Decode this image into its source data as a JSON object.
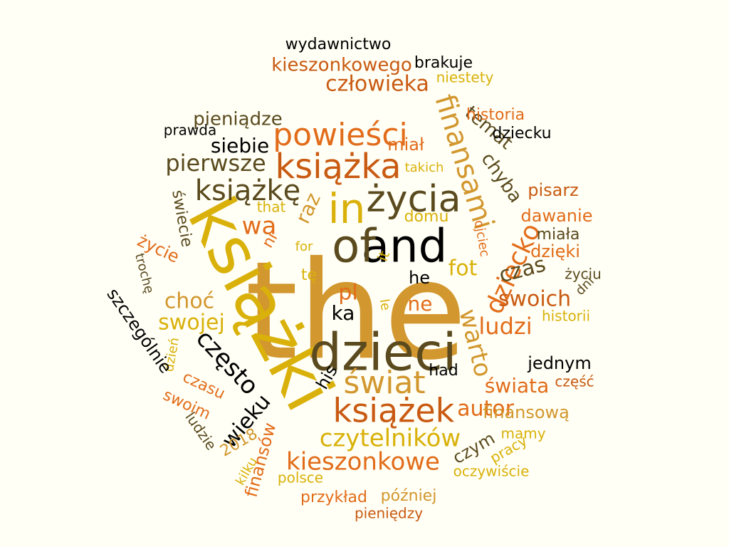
{
  "palette": {
    "background": "#fffff5",
    "gold": "#d9b10a",
    "amber": "#d2972e",
    "orange": "#e26c1a",
    "rust": "#c95a12",
    "olive": "#5a4a1e",
    "black": "#000000"
  },
  "words": [
    {
      "text": "the",
      "color": "#d2972e"
    },
    {
      "text": "książki",
      "color": "#d9b10a"
    },
    {
      "text": "dzieci",
      "color": "#5a4a1e"
    },
    {
      "text": "and",
      "color": "#000000"
    },
    {
      "text": "of",
      "color": "#5a4a1e"
    },
    {
      "text": "in",
      "color": "#d9b10a"
    },
    {
      "text": "życia",
      "color": "#5a4a1e"
    },
    {
      "text": "świat",
      "color": "#d2972e"
    },
    {
      "text": "książka",
      "color": "#c95a12"
    },
    {
      "text": "powieści",
      "color": "#e26c1a"
    },
    {
      "text": "książek",
      "color": "#c95a12"
    },
    {
      "text": "finansami",
      "color": "#d2972e"
    },
    {
      "text": "dziecko",
      "color": "#e26c1a"
    },
    {
      "text": "warto",
      "color": "#d2972e"
    },
    {
      "text": "książkę",
      "color": "#5a4a1e"
    },
    {
      "text": "często",
      "color": "#000000"
    },
    {
      "text": "czytelników",
      "color": "#d9b10a"
    },
    {
      "text": "kieszonkowe",
      "color": "#e26c1a"
    },
    {
      "text": "pierwsze",
      "color": "#5a4a1e"
    },
    {
      "text": "człowieka",
      "color": "#c95a12"
    },
    {
      "text": "kieszonkowego",
      "color": "#c95a12"
    },
    {
      "text": "swoich",
      "color": "#c95a12"
    },
    {
      "text": "ludzi",
      "color": "#e26c1a"
    },
    {
      "text": "swojej",
      "color": "#d9b10a"
    },
    {
      "text": "choć",
      "color": "#d2972e"
    },
    {
      "text": "autor",
      "color": "#e26c1a"
    },
    {
      "text": "wieku",
      "color": "#000000"
    },
    {
      "text": "siebie",
      "color": "#000000"
    },
    {
      "text": "pieniądze",
      "color": "#5a4a1e"
    },
    {
      "text": "temat",
      "color": "#5a4a1e"
    },
    {
      "text": "chyba",
      "color": "#5a4a1e"
    },
    {
      "text": "czas",
      "color": "#5a4a1e"
    },
    {
      "text": "raz",
      "color": "#d2972e"
    },
    {
      "text": "wa",
      "color": "#e26c1a"
    },
    {
      "text": "fot",
      "color": "#d9b10a"
    },
    {
      "text": "pl",
      "color": "#e26c1a"
    },
    {
      "text": "ka",
      "color": "#000000"
    },
    {
      "text": "ne",
      "color": "#e26c1a"
    },
    {
      "text": "he",
      "color": "#000000"
    },
    {
      "text": "miał",
      "color": "#e26c1a"
    },
    {
      "text": "domu",
      "color": "#d9b10a"
    },
    {
      "text": "świata",
      "color": "#e26c1a"
    },
    {
      "text": "finansową",
      "color": "#d2972e"
    },
    {
      "text": "dawanie",
      "color": "#e26c1a"
    },
    {
      "text": "pisarz",
      "color": "#c95a12"
    },
    {
      "text": "historia",
      "color": "#e26c1a"
    },
    {
      "text": "dziecku",
      "color": "#000000"
    },
    {
      "text": "miała",
      "color": "#5a4a1e"
    },
    {
      "text": "dzięki",
      "color": "#e26c1a"
    },
    {
      "text": "życiu",
      "color": "#5a4a1e"
    },
    {
      "text": "historii",
      "color": "#d9b10a"
    },
    {
      "text": "jednym",
      "color": "#000000"
    },
    {
      "text": "część",
      "color": "#c95a12"
    },
    {
      "text": "mamy",
      "color": "#d9b10a"
    },
    {
      "text": "pracy",
      "color": "#d9b10a"
    },
    {
      "text": "czym",
      "color": "#5a4a1e"
    },
    {
      "text": "oczywiście",
      "color": "#d9b10a"
    },
    {
      "text": "później",
      "color": "#d2972e"
    },
    {
      "text": "pieniędzy",
      "color": "#c95a12"
    },
    {
      "text": "przykład",
      "color": "#e26c1a"
    },
    {
      "text": "polsce",
      "color": "#d9b10a"
    },
    {
      "text": "finansów",
      "color": "#e26c1a"
    },
    {
      "text": "kilku",
      "color": "#d9b10a"
    },
    {
      "text": "2018",
      "color": "#d2972e"
    },
    {
      "text": "ludzie",
      "color": "#5a4a1e"
    },
    {
      "text": "swoim",
      "color": "#e26c1a"
    },
    {
      "text": "czasu",
      "color": "#e26c1a"
    },
    {
      "text": "dzień",
      "color": "#d9b10a"
    },
    {
      "text": "szczególnie",
      "color": "#000000"
    },
    {
      "text": "trochę",
      "color": "#5a4a1e"
    },
    {
      "text": "życie",
      "color": "#e26c1a"
    },
    {
      "text": "świecie",
      "color": "#5a4a1e"
    },
    {
      "text": "prawda",
      "color": "#000000"
    },
    {
      "text": "wydawnictwo",
      "color": "#000000"
    },
    {
      "text": "brakuje",
      "color": "#000000"
    },
    {
      "text": "niestety",
      "color": "#d9b10a"
    },
    {
      "text": "takich",
      "color": "#d9b10a"
    },
    {
      "text": "that",
      "color": "#d9b10a"
    },
    {
      "text": "ni",
      "color": "#e26c1a"
    },
    {
      "text": "for",
      "color": "#d9b10a"
    },
    {
      "text": "tę",
      "color": "#d9b10a"
    },
    {
      "text": "it",
      "color": "#d9b10a"
    },
    {
      "text": "le",
      "color": "#d9b10a"
    },
    {
      "text": "his",
      "color": "#000000"
    },
    {
      "text": "had",
      "color": "#000000"
    },
    {
      "text": "ojciec",
      "color": "#e26c1a"
    },
    {
      "text": "dni",
      "color": "#5a4a1e"
    }
  ]
}
